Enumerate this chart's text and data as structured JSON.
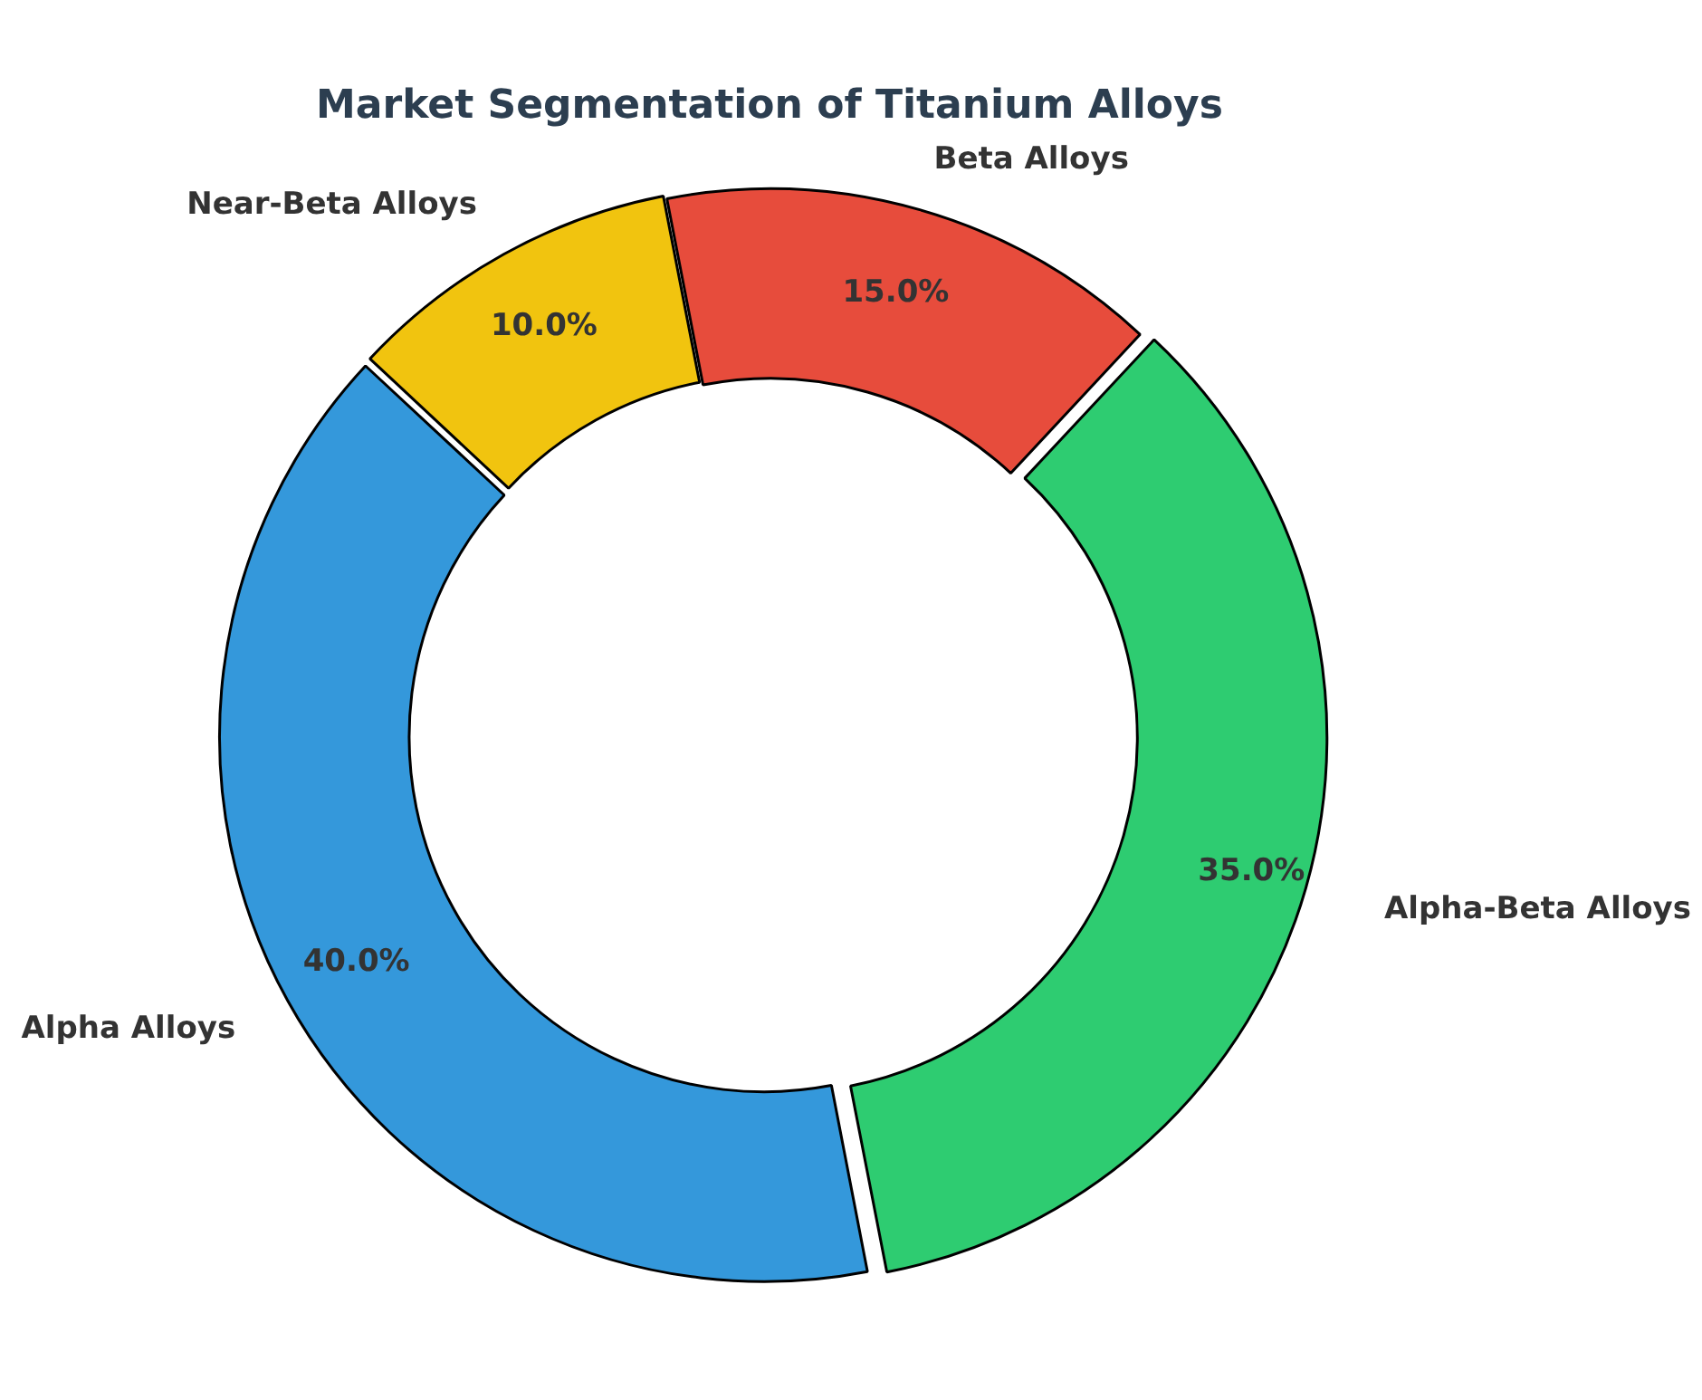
{
  "chart_data": {
    "type": "donut",
    "title": "Market Segmentation of Titanium Alloys",
    "categories": [
      "Near-Beta Alloys",
      "Beta Alloys",
      "Alpha-Beta Alloys",
      "Alpha Alloys"
    ],
    "values": [
      10,
      15,
      35,
      40
    ],
    "colors": [
      "#f1c40f",
      "#e74c3c",
      "#2ecc71",
      "#3498db"
    ],
    "value_labels": [
      "10.0%",
      "15.0%",
      "35.0%",
      "40.0%"
    ],
    "legend": false
  }
}
